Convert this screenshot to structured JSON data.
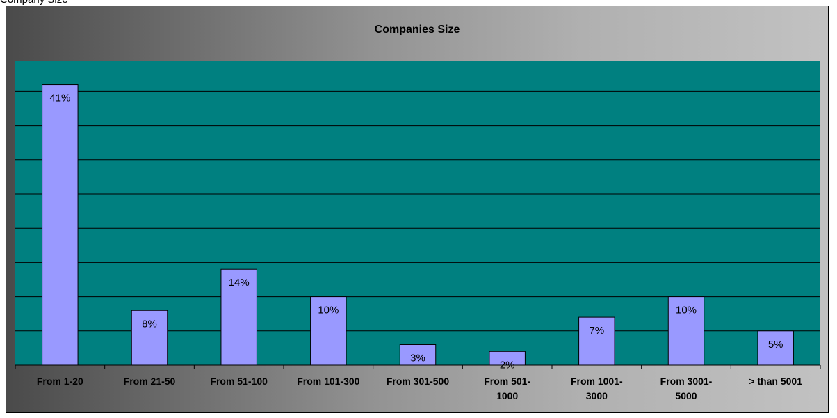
{
  "caption_partial": "Company Size",
  "chart_data": {
    "type": "bar",
    "title": "Companies Size",
    "xlabel": "",
    "ylabel": "",
    "categories": [
      [
        "From 1-20"
      ],
      [
        "From 21-50"
      ],
      [
        "From 51-100"
      ],
      [
        "From 101-300"
      ],
      [
        "From 301-500"
      ],
      [
        "From 501-",
        "1000"
      ],
      [
        "From 1001-",
        "3000"
      ],
      [
        "From 3001-",
        "5000"
      ],
      [
        "> than 5001"
      ]
    ],
    "values": [
      41,
      8,
      14,
      10,
      3,
      2,
      7,
      10,
      5
    ],
    "labels": [
      "41%",
      "8%",
      "14%",
      "10%",
      "3%",
      "2%",
      "7%",
      "10%",
      "5%"
    ],
    "ylim": [
      0,
      45
    ],
    "grid": true,
    "legend": "none",
    "colors": {
      "plot_area": "#008080",
      "bar_fill": "#9999ff",
      "bar_stroke": "#000000",
      "gridline": "#000000"
    }
  }
}
